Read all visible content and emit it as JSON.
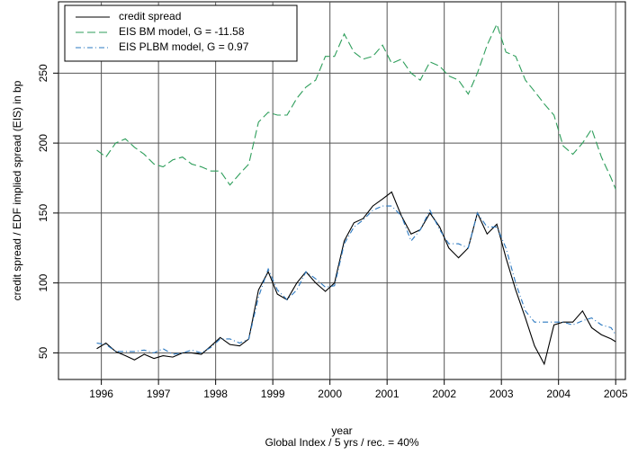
{
  "chart_data": {
    "type": "line",
    "y_label": "credit spread / EDF implied spread (EIS) in bp",
    "x_label": "year",
    "subtitle": "Global Index / 5 yrs / rec. = 40%",
    "x": [
      1995.92,
      1996.08,
      1996.25,
      1996.42,
      1996.58,
      1996.75,
      1996.92,
      1997.08,
      1997.25,
      1997.42,
      1997.58,
      1997.75,
      1997.92,
      1998.08,
      1998.25,
      1998.42,
      1998.58,
      1998.75,
      1998.92,
      1999.08,
      1999.25,
      1999.42,
      1999.58,
      1999.75,
      1999.92,
      2000.08,
      2000.25,
      2000.42,
      2000.58,
      2000.75,
      2000.92,
      2001.08,
      2001.25,
      2001.42,
      2001.58,
      2001.75,
      2001.92,
      2002.08,
      2002.25,
      2002.42,
      2002.58,
      2002.75,
      2002.92,
      2003.08,
      2003.25,
      2003.42,
      2003.58,
      2003.75,
      2003.92,
      2004.08,
      2004.25,
      2004.42,
      2004.58,
      2004.75,
      2004.92,
      2005.0
    ],
    "series": [
      {
        "name": "credit spread",
        "color": "#000000",
        "dash": "none",
        "values": [
          53,
          57,
          51,
          48,
          45,
          49,
          46,
          48,
          47,
          50,
          50,
          49,
          55,
          61,
          56,
          55,
          60,
          95,
          108,
          92,
          88,
          100,
          108,
          100,
          94,
          100,
          130,
          143,
          146,
          155,
          160,
          165,
          148,
          135,
          138,
          150,
          140,
          125,
          118,
          125,
          150,
          135,
          142,
          118,
          95,
          75,
          55,
          42,
          70,
          72,
          72,
          80,
          68,
          63,
          60,
          58
        ]
      },
      {
        "name": "EIS BM model, G = -11.58",
        "color": "#2e9e5b",
        "dash": "9,4",
        "values": [
          195,
          190,
          200,
          203,
          197,
          192,
          185,
          183,
          188,
          190,
          185,
          183,
          180,
          180,
          170,
          178,
          185,
          215,
          222,
          220,
          220,
          232,
          240,
          245,
          262,
          262,
          278,
          265,
          260,
          262,
          270,
          257,
          260,
          250,
          245,
          258,
          255,
          248,
          245,
          235,
          250,
          270,
          285,
          265,
          262,
          245,
          237,
          228,
          220,
          198,
          192,
          200,
          210,
          190,
          175,
          167
        ]
      },
      {
        "name": "EIS PLBM model, G = 0.97",
        "color": "#2b78c0",
        "dash": "6,3,1,3",
        "values": [
          57,
          56,
          51,
          51,
          51,
          52,
          50,
          53,
          49,
          50,
          52,
          50,
          54,
          60,
          60,
          57,
          60,
          90,
          110,
          95,
          88,
          95,
          108,
          103,
          97,
          98,
          128,
          140,
          145,
          152,
          155,
          155,
          148,
          130,
          138,
          152,
          138,
          128,
          128,
          125,
          150,
          140,
          140,
          125,
          100,
          80,
          72,
          72,
          72,
          72,
          70,
          73,
          75,
          70,
          68,
          63
        ]
      }
    ],
    "xlim": [
      1995.25,
      2005.17
    ],
    "ylim": [
      31,
      301
    ],
    "xticks": [
      1996,
      1997,
      1998,
      1999,
      2000,
      2001,
      2002,
      2003,
      2004,
      2005
    ],
    "yticks": [
      50,
      100,
      150,
      200,
      250
    ],
    "grid": true,
    "legend": "upper left"
  }
}
